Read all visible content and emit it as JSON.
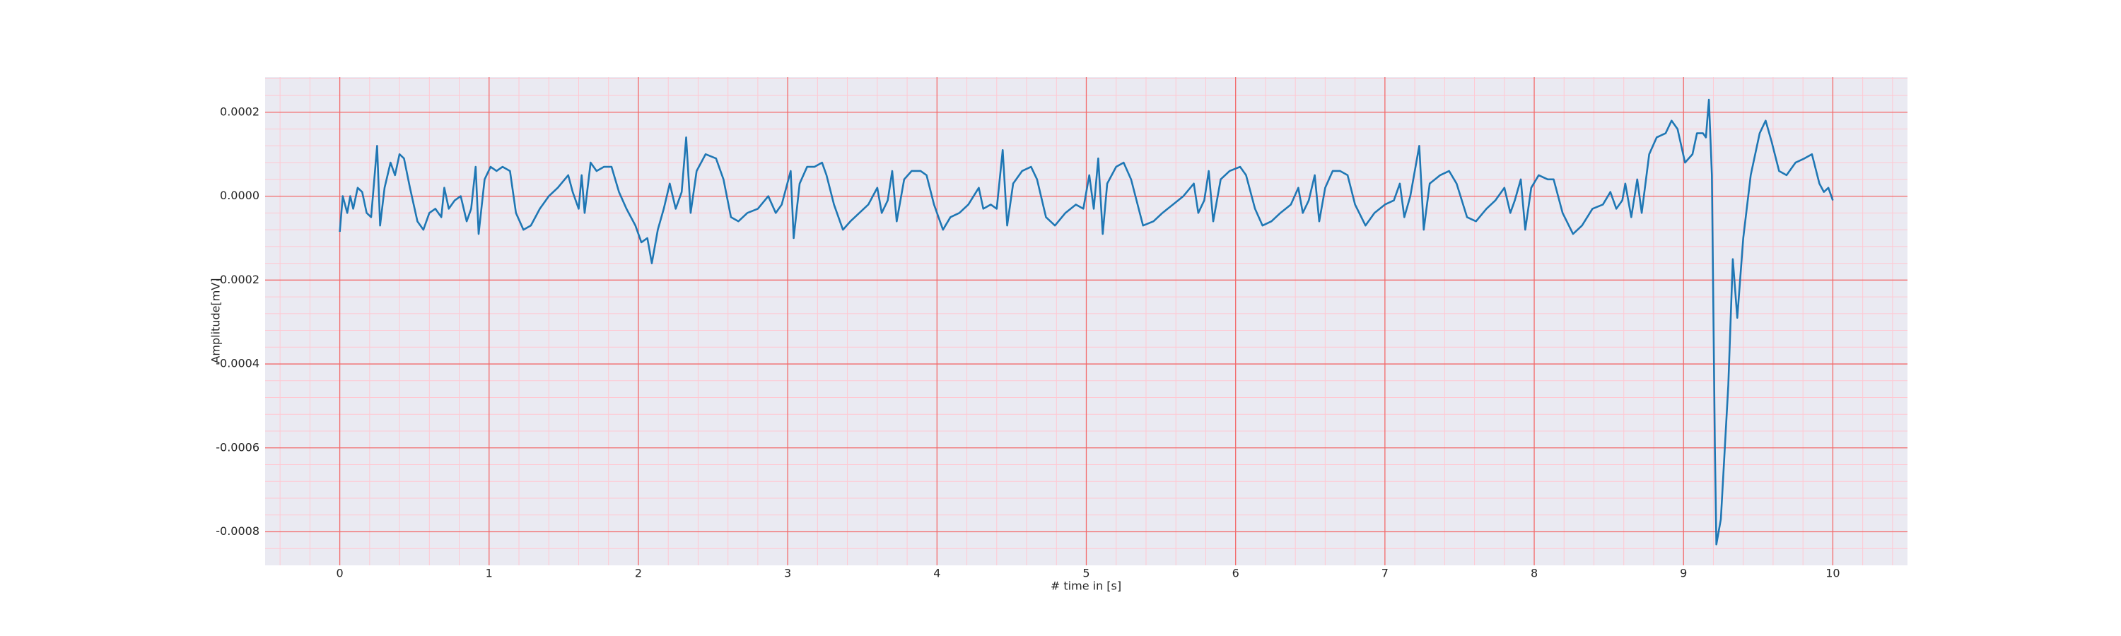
{
  "chart_data": {
    "type": "line",
    "xlabel": "# time in [s]",
    "ylabel": "Amplitude[mV]",
    "color": "#1f77b4",
    "xlim": [
      -0.5,
      10.5
    ],
    "ylim": [
      -0.00088,
      0.000284
    ],
    "xticks": [
      0,
      1,
      2,
      3,
      4,
      5,
      6,
      7,
      8,
      9,
      10
    ],
    "yticks": [
      -0.0008,
      -0.0006,
      -0.0004,
      -0.0002,
      {
        "value": 0,
        "label": "0.0000"
      },
      0.0002
    ],
    "xminorticks": [
      -0.4,
      -0.2,
      0.2,
      0.4,
      0.6,
      0.8,
      1.2,
      1.4,
      1.6,
      1.8,
      2.2,
      2.4,
      2.6,
      2.8,
      3.2,
      3.4,
      3.6,
      3.8,
      4.2,
      4.4,
      4.6,
      4.8,
      5.2,
      5.4,
      5.6,
      5.8,
      6.2,
      6.4,
      6.6,
      6.8,
      7.2,
      7.4,
      7.6,
      7.8,
      8.2,
      8.4,
      8.6,
      8.8,
      9.2,
      9.4,
      9.6,
      9.8,
      10.2,
      10.4
    ],
    "yminorticks": [
      -0.00084,
      -0.00076,
      -0.00072,
      -0.00068,
      -0.00064,
      -0.00056,
      -0.00052,
      -0.00048,
      -0.00044,
      -0.00036,
      -0.00032,
      -0.00028,
      -0.00024,
      -0.00016,
      -0.00012,
      -8e-05,
      -4e-05,
      4e-05,
      8e-05,
      0.00012,
      0.00016,
      0.00024,
      0.00028
    ],
    "grid": true,
    "x": [
      0.0,
      0.02,
      0.05,
      0.07,
      0.09,
      0.12,
      0.15,
      0.18,
      0.21,
      0.25,
      0.27,
      0.3,
      0.34,
      0.37,
      0.4,
      0.43,
      0.47,
      0.52,
      0.56,
      0.6,
      0.64,
      0.68,
      0.7,
      0.73,
      0.77,
      0.81,
      0.85,
      0.88,
      0.91,
      0.93,
      0.97,
      1.01,
      1.05,
      1.09,
      1.14,
      1.18,
      1.23,
      1.28,
      1.34,
      1.4,
      1.46,
      1.53,
      1.56,
      1.6,
      1.62,
      1.64,
      1.68,
      1.72,
      1.77,
      1.82,
      1.87,
      1.92,
      1.98,
      2.02,
      2.06,
      2.09,
      2.13,
      2.17,
      2.21,
      2.25,
      2.29,
      2.32,
      2.35,
      2.39,
      2.45,
      2.52,
      2.57,
      2.62,
      2.67,
      2.73,
      2.8,
      2.87,
      2.92,
      2.96,
      3.02,
      3.04,
      3.08,
      3.13,
      3.18,
      3.23,
      3.26,
      3.31,
      3.37,
      3.42,
      3.48,
      3.54,
      3.6,
      3.63,
      3.67,
      3.7,
      3.73,
      3.78,
      3.83,
      3.89,
      3.93,
      3.98,
      4.04,
      4.09,
      4.15,
      4.21,
      4.28,
      4.31,
      4.36,
      4.4,
      4.44,
      4.47,
      4.51,
      4.57,
      4.63,
      4.67,
      4.73,
      4.79,
      4.86,
      4.93,
      4.98,
      5.02,
      5.05,
      5.08,
      5.11,
      5.14,
      5.2,
      5.25,
      5.3,
      5.38,
      5.45,
      5.51,
      5.58,
      5.65,
      5.72,
      5.75,
      5.79,
      5.82,
      5.85,
      5.9,
      5.96,
      6.03,
      6.07,
      6.13,
      6.18,
      6.24,
      6.3,
      6.37,
      6.42,
      6.45,
      6.49,
      6.53,
      6.56,
      6.6,
      6.65,
      6.7,
      6.75,
      6.8,
      6.87,
      6.93,
      7.0,
      7.06,
      7.1,
      7.13,
      7.17,
      7.23,
      7.26,
      7.3,
      7.37,
      7.43,
      7.48,
      7.55,
      7.61,
      7.68,
      7.74,
      7.8,
      7.84,
      7.87,
      7.91,
      7.94,
      7.98,
      8.03,
      8.09,
      8.13,
      8.19,
      8.26,
      8.32,
      8.39,
      8.46,
      8.51,
      8.55,
      8.59,
      8.61,
      8.65,
      8.69,
      8.72,
      8.77,
      8.82,
      8.88,
      8.92,
      8.96,
      9.01,
      9.06,
      9.09,
      9.13,
      9.15,
      9.17,
      9.19,
      9.21,
      9.22,
      9.25,
      9.3,
      9.33,
      9.36,
      9.4,
      9.45,
      9.51,
      9.55,
      9.59,
      9.64,
      9.69,
      9.75,
      9.81,
      9.86,
      9.91,
      9.94,
      9.97,
      10.0
    ],
    "values": [
      -8.5e-05,
      0,
      -4e-05,
      0,
      -3e-05,
      2e-05,
      1e-05,
      -4e-05,
      -5e-05,
      0.00012,
      -7e-05,
      2e-05,
      8e-05,
      5e-05,
      0.0001,
      9e-05,
      2e-05,
      -6e-05,
      -8e-05,
      -4e-05,
      -3e-05,
      -5e-05,
      2e-05,
      -3e-05,
      -1e-05,
      0,
      -6e-05,
      -3e-05,
      7e-05,
      -9e-05,
      4e-05,
      7e-05,
      6e-05,
      7e-05,
      6e-05,
      -4e-05,
      -8e-05,
      -7e-05,
      -3e-05,
      0,
      2e-05,
      5e-05,
      1e-05,
      -3e-05,
      5e-05,
      -4e-05,
      8e-05,
      6e-05,
      7e-05,
      7e-05,
      1e-05,
      -3e-05,
      -7e-05,
      -0.00011,
      -0.0001,
      -0.00016,
      -8e-05,
      -3e-05,
      3e-05,
      -3e-05,
      1e-05,
      0.00014,
      -4e-05,
      6e-05,
      0.0001,
      9e-05,
      4e-05,
      -5e-05,
      -6e-05,
      -4e-05,
      -3e-05,
      0,
      -4e-05,
      -2e-05,
      6e-05,
      -0.0001,
      3e-05,
      7e-05,
      7e-05,
      8e-05,
      5e-05,
      -2e-05,
      -8e-05,
      -6e-05,
      -4e-05,
      -2e-05,
      2e-05,
      -4e-05,
      -1e-05,
      6e-05,
      -6e-05,
      4e-05,
      6e-05,
      6e-05,
      5e-05,
      -2e-05,
      -8e-05,
      -5e-05,
      -4e-05,
      -2e-05,
      2e-05,
      -3e-05,
      -2e-05,
      -3e-05,
      0.00011,
      -7e-05,
      3e-05,
      6e-05,
      7e-05,
      4e-05,
      -5e-05,
      -7e-05,
      -4e-05,
      -2e-05,
      -3e-05,
      5e-05,
      -3e-05,
      9e-05,
      -9e-05,
      3e-05,
      7e-05,
      8e-05,
      4e-05,
      -7e-05,
      -6e-05,
      -4e-05,
      -2e-05,
      0,
      3e-05,
      -4e-05,
      -1e-05,
      6e-05,
      -6e-05,
      4e-05,
      6e-05,
      7e-05,
      5e-05,
      -3e-05,
      -7e-05,
      -6e-05,
      -4e-05,
      -2e-05,
      2e-05,
      -4e-05,
      -1e-05,
      5e-05,
      -6e-05,
      2e-05,
      6e-05,
      6e-05,
      5e-05,
      -2e-05,
      -7e-05,
      -4e-05,
      -2e-05,
      -1e-05,
      3e-05,
      -5e-05,
      0,
      0.00012,
      -8e-05,
      3e-05,
      5e-05,
      6e-05,
      3e-05,
      -5e-05,
      -6e-05,
      -3e-05,
      -1e-05,
      2e-05,
      -4e-05,
      -1e-05,
      4e-05,
      -8e-05,
      2e-05,
      5e-05,
      4e-05,
      4e-05,
      -4e-05,
      -9e-05,
      -7e-05,
      -3e-05,
      -2e-05,
      1e-05,
      -3e-05,
      -1e-05,
      3e-05,
      -5e-05,
      4e-05,
      -4e-05,
      0.0001,
      0.00014,
      0.00015,
      0.00018,
      0.00016,
      8e-05,
      0.0001,
      0.00015,
      0.00015,
      0.00014,
      0.00023,
      5e-05,
      -0.0006,
      -0.00083,
      -0.00077,
      -0.00045,
      -0.00015,
      -0.00029,
      -0.0001,
      5e-05,
      0.00015,
      0.00018,
      0.00013,
      6e-05,
      5e-05,
      8e-05,
      9e-05,
      0.0001,
      3e-05,
      1e-05,
      2e-05,
      -1e-05
    ]
  }
}
